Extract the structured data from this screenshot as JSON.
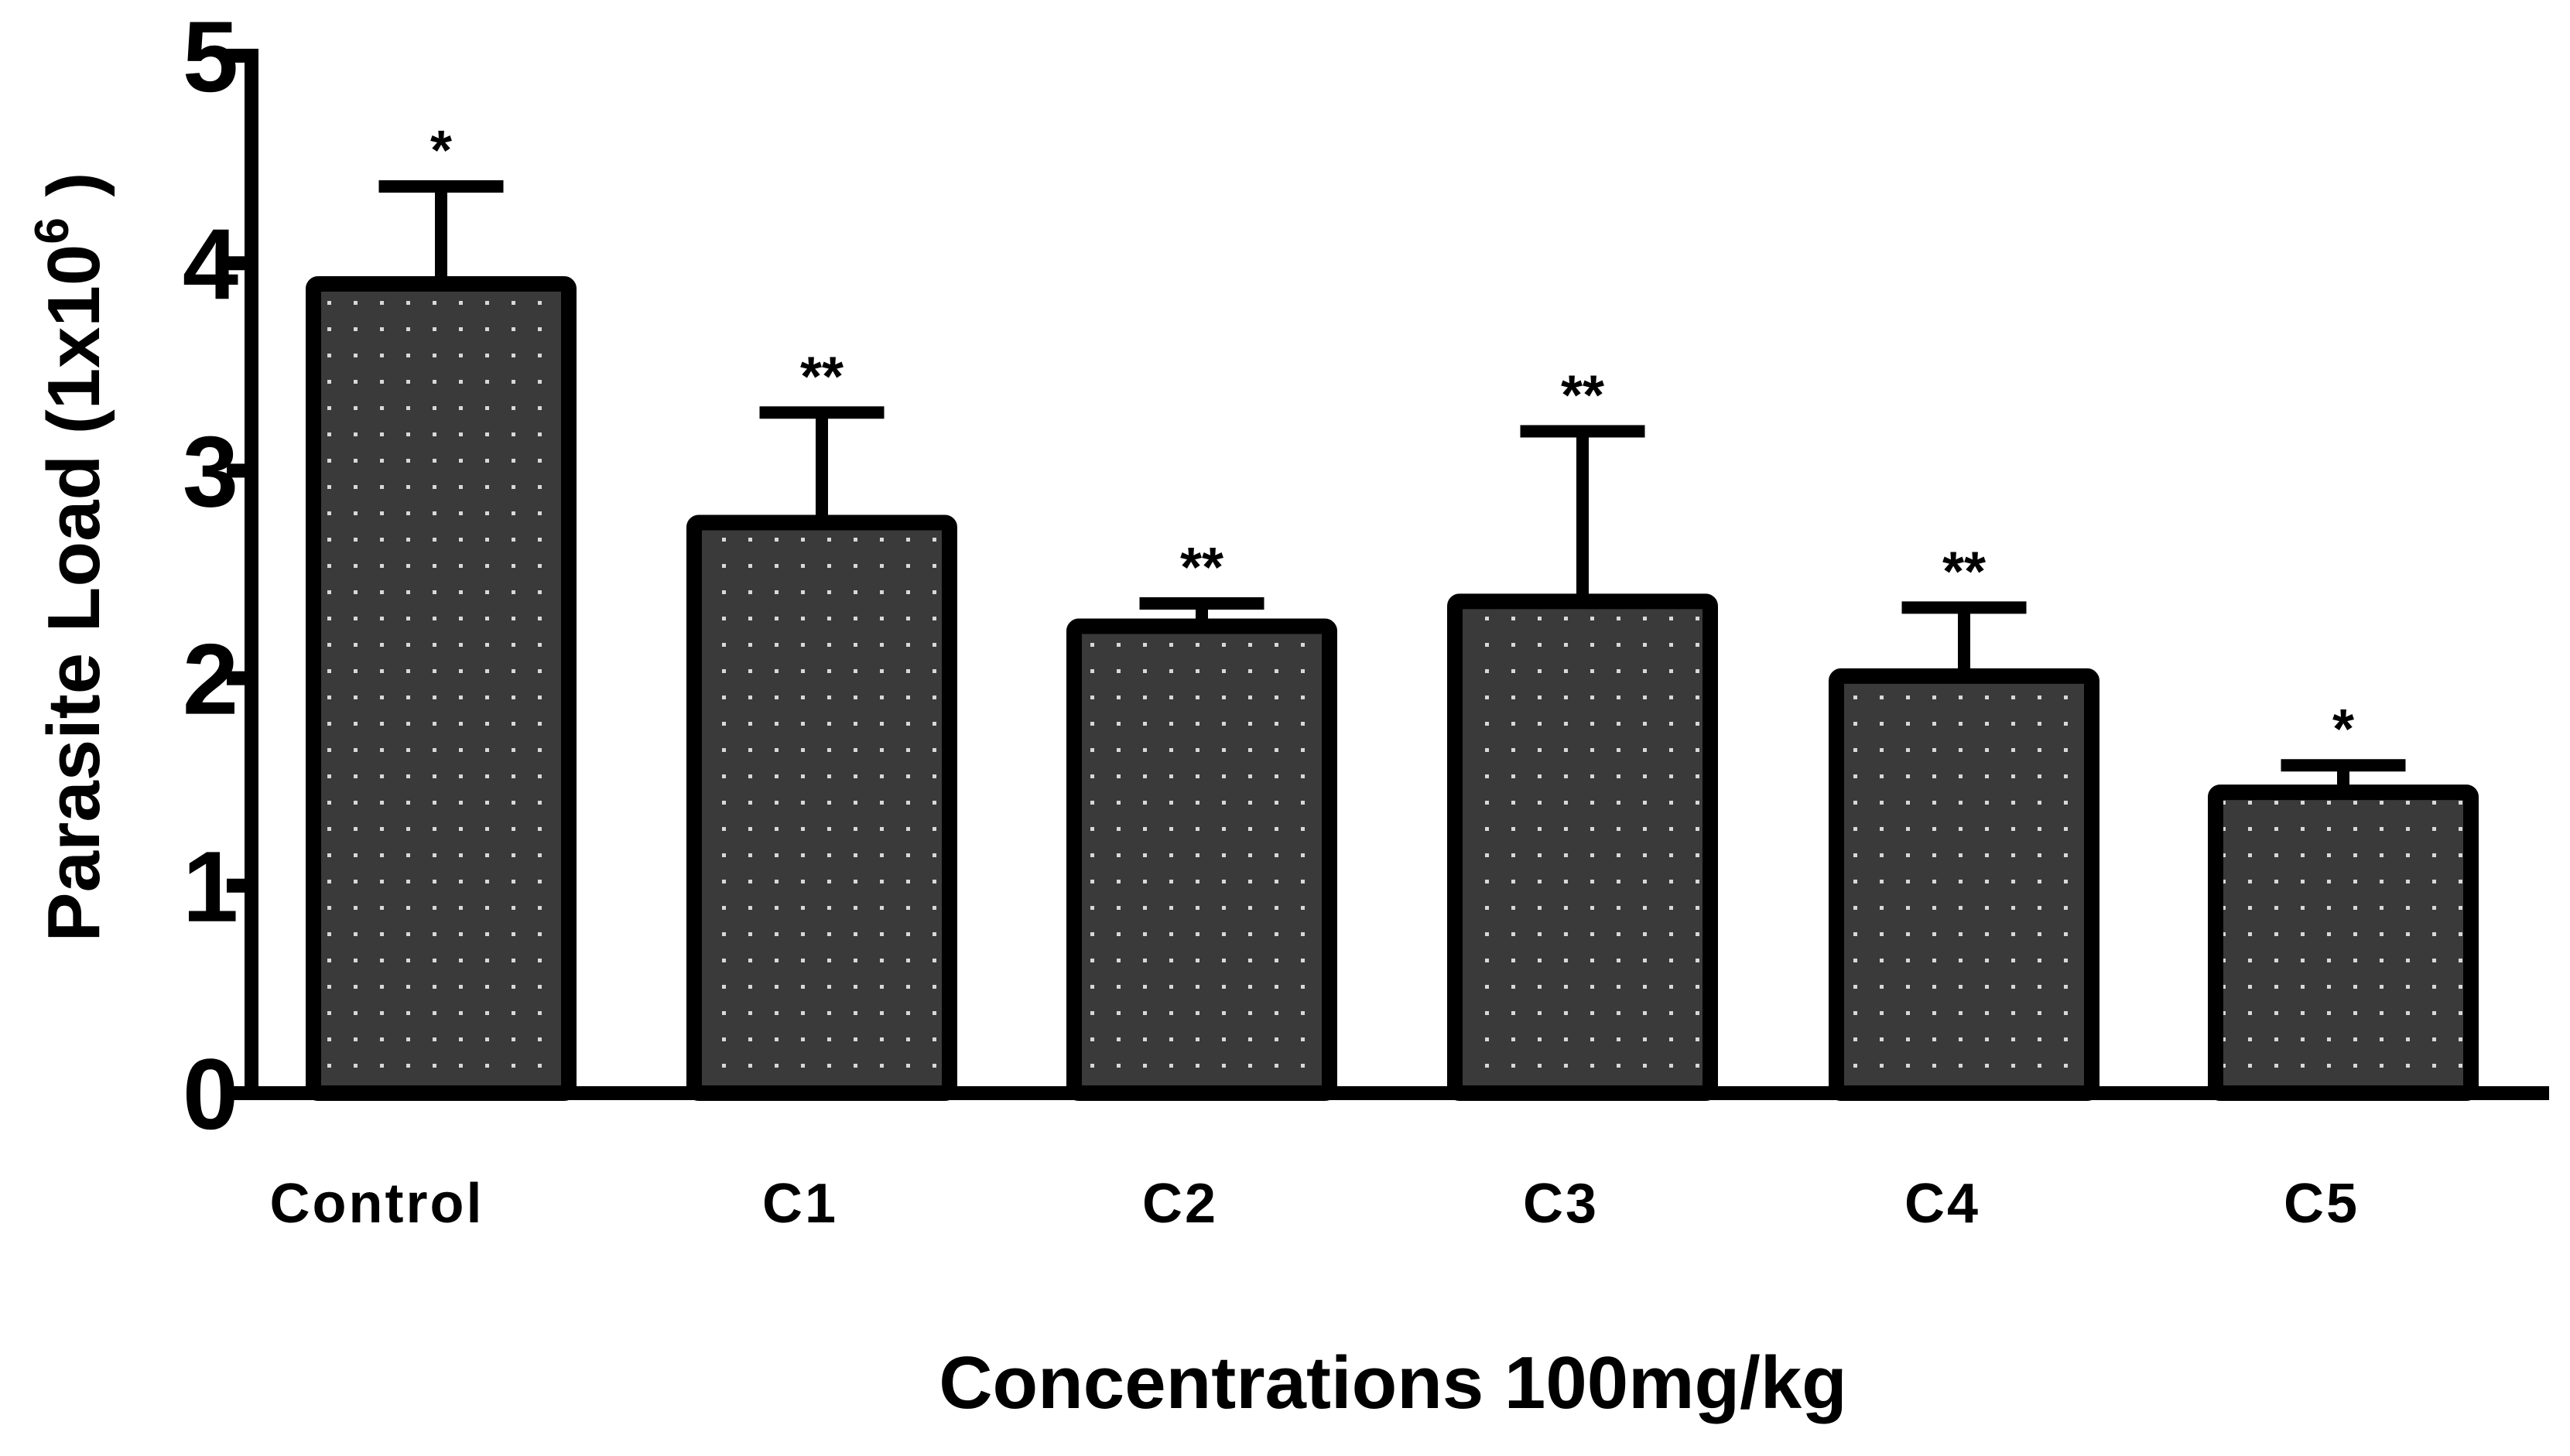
{
  "chart_data": {
    "type": "bar",
    "title": "",
    "xlabel": "Concentrations 100mg/kg",
    "ylabel": {
      "text": "Parasite Load (1x10",
      "superscript": "6",
      "suffix": " )"
    },
    "ylim": [
      0,
      5
    ],
    "yticks": [
      "0",
      "1",
      "2",
      "3",
      "4",
      "5"
    ],
    "categories": [
      "Control",
      "C1",
      "C2",
      "C3",
      "C4",
      "C5"
    ],
    "values": [
      3.9,
      2.75,
      2.25,
      2.37,
      2.01,
      1.45
    ],
    "error_upper": [
      0.47,
      0.53,
      0.11,
      0.82,
      0.33,
      0.13
    ],
    "significance": [
      "*",
      "**",
      "**",
      "**",
      "**",
      "*"
    ],
    "bar_fill": "#3a3a3a",
    "bar_stroke": "#000000",
    "dot_color": "#d8d8d8",
    "grid": false
  }
}
